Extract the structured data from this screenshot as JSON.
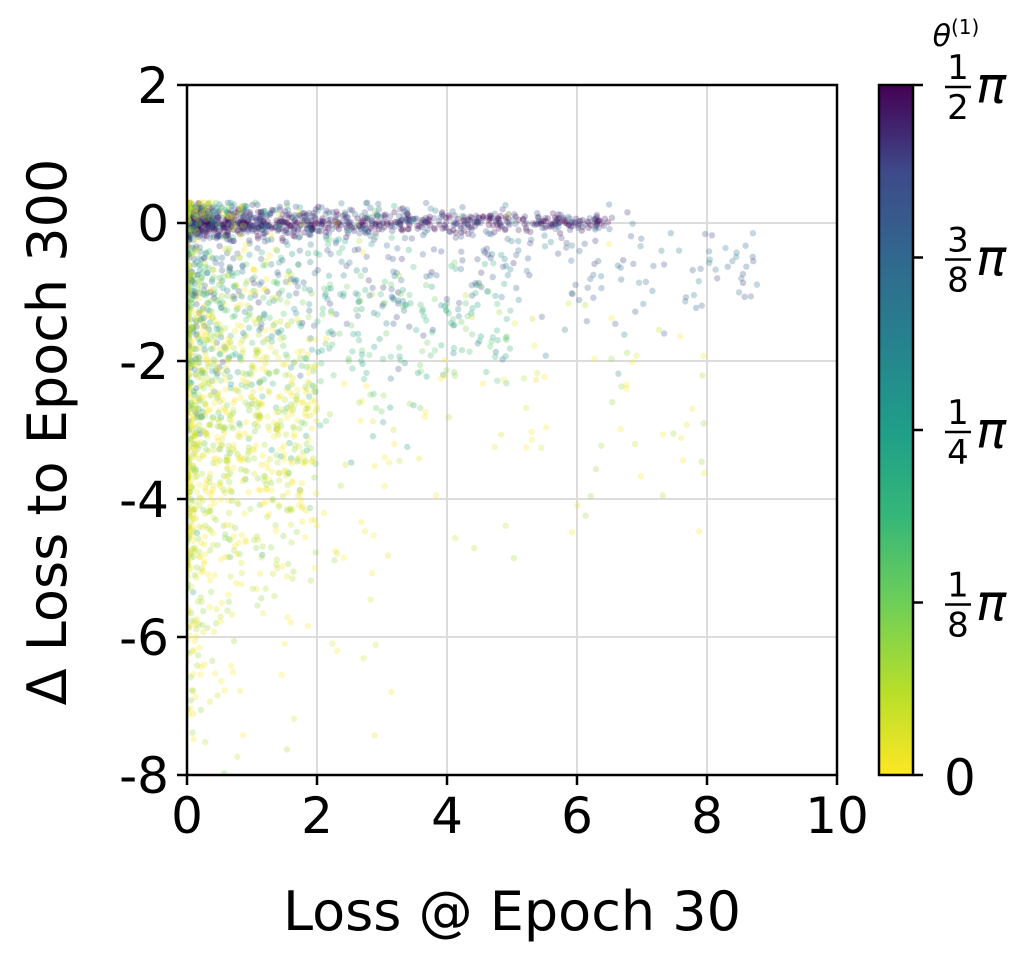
{
  "chart_data": {
    "type": "scatter",
    "title": "",
    "xlabel": "Loss @ Epoch 30",
    "ylabel": "Δ Loss to Epoch 300",
    "xlim": [
      0,
      10
    ],
    "ylim": [
      -8,
      2
    ],
    "xticks": [
      0,
      2,
      4,
      6,
      8,
      10
    ],
    "xtick_labels": [
      "0",
      "2",
      "4",
      "6",
      "8",
      "10"
    ],
    "yticks": [
      2,
      0,
      -2,
      -4,
      -6,
      -8
    ],
    "ytick_labels": [
      "2",
      "0",
      "-2",
      "-4",
      "-6",
      "-8"
    ],
    "grid": true,
    "colormap": "viridis_r",
    "colorbar": {
      "title": "θ(1)",
      "range": [
        0,
        1.5708
      ],
      "ticks": [
        {
          "value": 0,
          "num": "",
          "den": "",
          "sym": "0"
        },
        {
          "value": 0.3927,
          "num": "1",
          "den": "8",
          "sym": "π"
        },
        {
          "value": 0.7854,
          "num": "1",
          "den": "4",
          "sym": "π"
        },
        {
          "value": 1.1781,
          "num": "3",
          "den": "8",
          "sym": "π"
        },
        {
          "value": 1.5708,
          "num": "1",
          "den": "2",
          "sym": "π"
        }
      ]
    },
    "clusters": [
      {
        "color_value": 1.5,
        "x_min": 0.0,
        "x_max": 6.5,
        "y_center": 0.0,
        "y_spread": 0.12,
        "density": "high"
      },
      {
        "color_value": 1.2,
        "x_min": 0.0,
        "x_max": 8.8,
        "y_center": -0.6,
        "y_spread": 0.9,
        "density": "medium"
      },
      {
        "color_value": 0.6,
        "x_min": 0.0,
        "x_max": 5.0,
        "y_center": -1.5,
        "y_spread": 1.3,
        "density": "medium"
      },
      {
        "color_value": 0.1,
        "x_min": 0.0,
        "x_max": 2.0,
        "y_center": -3.0,
        "y_spread": 2.0,
        "density": "high"
      },
      {
        "color_value": 0.05,
        "x_min": 0.0,
        "x_max": 8.0,
        "y_center": -3.0,
        "y_spread": 2.2,
        "density": "low"
      }
    ]
  }
}
